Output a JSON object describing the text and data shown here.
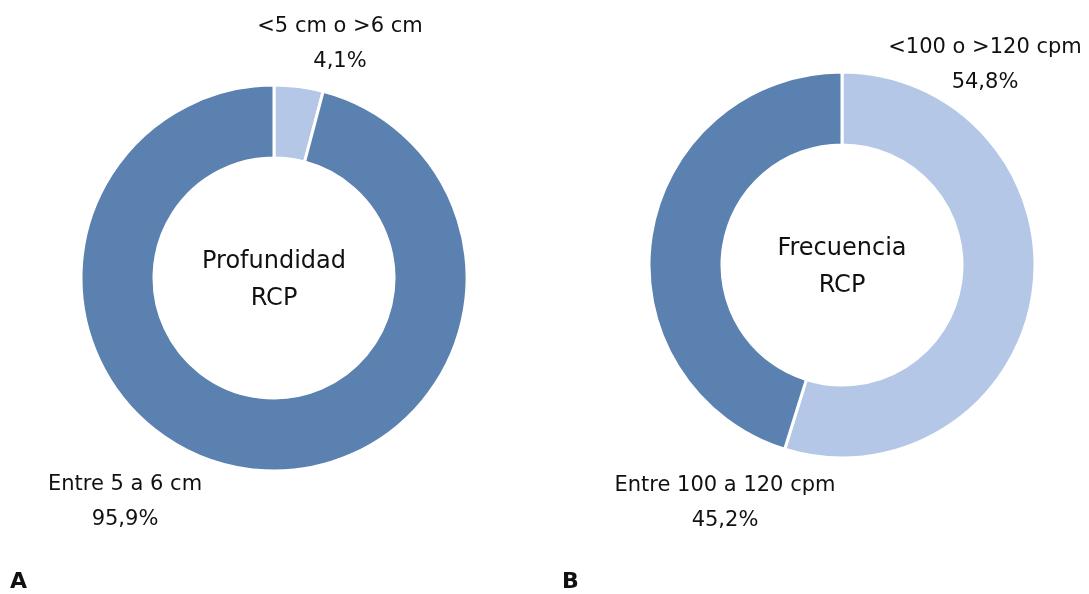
{
  "chart_data": [
    {
      "type": "donut",
      "title": "Profundidad RCP",
      "categories": [
        "<5 cm o >6 cm",
        "Entre 5 a 6 cm"
      ],
      "values": [
        4.1,
        95.9
      ],
      "colors": [
        "#b4c7e7",
        "#5a81b0"
      ],
      "value_labels": [
        "4,1%",
        "95,9%"
      ],
      "annotations": [
        "A"
      ]
    },
    {
      "type": "donut",
      "title": "Frecuencia RCP",
      "categories": [
        "<100 o >120 cpm",
        "Entre 100 a 120 cpm"
      ],
      "values": [
        54.8,
        45.2
      ],
      "colors": [
        "#b4c7e7",
        "#5a81b0"
      ],
      "value_labels": [
        "54,8%",
        "45,2%"
      ],
      "annotations": [
        "B"
      ]
    }
  ]
}
